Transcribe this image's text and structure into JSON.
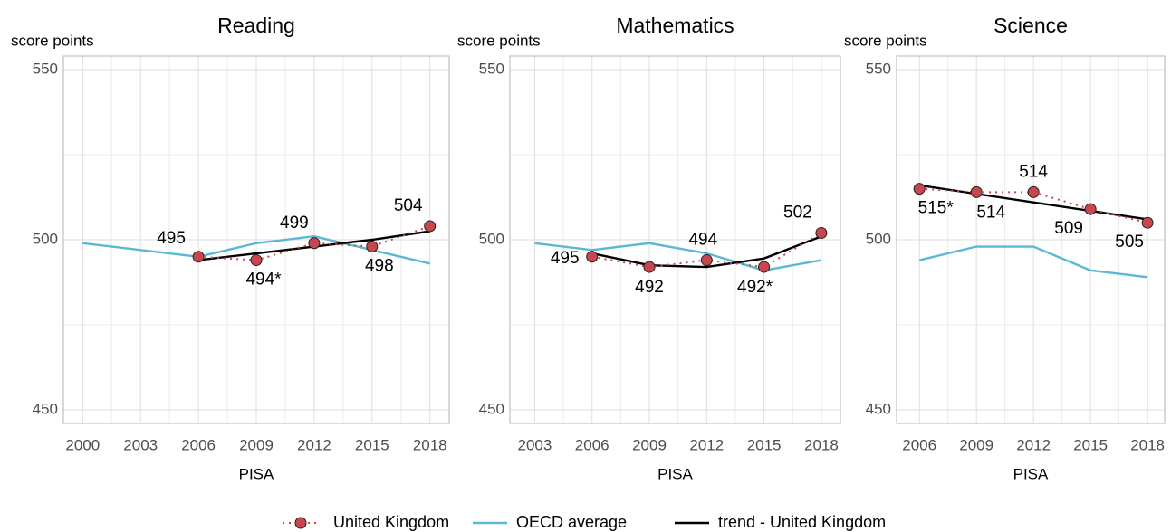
{
  "chart_data": [
    {
      "type": "line",
      "title": "Reading",
      "y_label": "score points",
      "x_label": "PISA",
      "x": [
        2000,
        2003,
        2006,
        2009,
        2012,
        2015,
        2018
      ],
      "xlim": [
        1999,
        2019
      ],
      "xticks": [
        2000,
        2003,
        2006,
        2009,
        2012,
        2015,
        2018
      ],
      "ylim": [
        446,
        554
      ],
      "yticks": [
        450,
        500,
        550
      ],
      "grid": true,
      "series": [
        {
          "name": "United Kingdom",
          "color": "#c8474f",
          "values": [
            null,
            null,
            495,
            494,
            499,
            498,
            504
          ],
          "value_labels": [
            null,
            null,
            "495",
            "494*",
            "499",
            "498",
            "504"
          ]
        },
        {
          "name": "OECD average",
          "color": "#5bb8d4",
          "values": [
            499,
            497,
            495,
            499,
            501,
            497,
            493
          ]
        },
        {
          "name": "trend - United Kingdom",
          "color": "#000000",
          "values": [
            null,
            null,
            494,
            496,
            498,
            500,
            502.5
          ]
        }
      ]
    },
    {
      "type": "line",
      "title": "Mathematics",
      "y_label": "score points",
      "x_label": "PISA",
      "x": [
        2003,
        2006,
        2009,
        2012,
        2015,
        2018
      ],
      "xlim": [
        2001.7,
        2019
      ],
      "xticks": [
        2003,
        2006,
        2009,
        2012,
        2015,
        2018
      ],
      "ylim": [
        446,
        554
      ],
      "yticks": [
        450,
        500,
        550
      ],
      "grid": true,
      "series": [
        {
          "color": "#c8474f",
          "values": [
            null,
            495,
            492,
            494,
            492,
            502
          ],
          "value_labels": [
            null,
            "495",
            "492",
            "494",
            "492*",
            "502"
          ]
        },
        {
          "color": "#5bb8d4",
          "values": [
            499,
            497,
            499,
            496,
            491,
            494
          ]
        },
        {
          "color": "#000000",
          "values": [
            null,
            496,
            492.5,
            492,
            494.5,
            501
          ]
        }
      ]
    },
    {
      "type": "line",
      "title": "Science",
      "y_label": "score points",
      "x_label": "PISA",
      "x": [
        2006,
        2009,
        2012,
        2015,
        2018
      ],
      "xlim": [
        2004.8,
        2018.9
      ],
      "xticks": [
        2006,
        2009,
        2012,
        2015,
        2018
      ],
      "ylim": [
        446,
        554
      ],
      "yticks": [
        450,
        500,
        550
      ],
      "grid": true,
      "series": [
        {
          "color": "#c8474f",
          "values": [
            515,
            514,
            514,
            509,
            505
          ],
          "value_labels": [
            "515*",
            "514",
            "514",
            "509",
            "505"
          ]
        },
        {
          "color": "#5bb8d4",
          "values": [
            494,
            498,
            498,
            491,
            489
          ]
        },
        {
          "color": "#000000",
          "values": [
            516,
            513.5,
            511,
            508.5,
            506
          ]
        }
      ]
    }
  ]
}
